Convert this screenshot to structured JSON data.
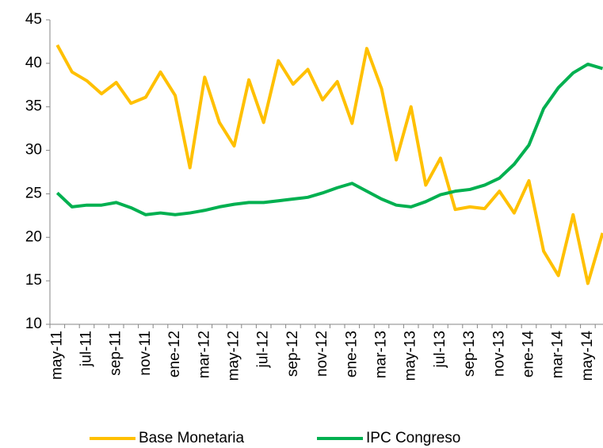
{
  "chart_data": {
    "type": "line",
    "categories": [
      "may-11",
      null,
      "jul-11",
      null,
      "sep-11",
      null,
      "nov-11",
      null,
      "ene-12",
      null,
      "mar-12",
      null,
      "may-12",
      null,
      "jul-12",
      null,
      "sep-12",
      null,
      "nov-12",
      null,
      "ene-13",
      null,
      "mar-13",
      null,
      "may-13",
      null,
      "jul-13",
      null,
      "sep-13",
      null,
      "nov-13",
      null,
      "ene-14",
      null,
      "mar-14",
      null,
      "may-14",
      null
    ],
    "series": [
      {
        "name": "Base Monetaria",
        "color": "#FFC000",
        "values": [
          42.1,
          39.0,
          38.0,
          36.5,
          37.8,
          35.4,
          36.1,
          39.0,
          36.3,
          28.0,
          38.4,
          33.2,
          30.5,
          38.1,
          33.2,
          40.3,
          37.6,
          39.3,
          35.8,
          37.9,
          33.1,
          41.7,
          37.1,
          28.9,
          35.0,
          26.0,
          29.1,
          23.2,
          23.5,
          23.3,
          25.3,
          22.8,
          26.5,
          18.4,
          15.6,
          22.6,
          14.7,
          20.5
        ]
      },
      {
        "name": "IPC Congreso",
        "color": "#00B050",
        "values": [
          25.1,
          23.5,
          23.7,
          23.7,
          24.0,
          23.4,
          22.6,
          22.8,
          22.6,
          22.8,
          23.1,
          23.5,
          23.8,
          24.0,
          24.0,
          24.2,
          24.4,
          24.6,
          25.1,
          25.7,
          26.2,
          25.3,
          24.4,
          23.7,
          23.5,
          24.1,
          24.9,
          25.3,
          25.5,
          26.0,
          26.8,
          28.4,
          30.6,
          34.8,
          37.2,
          38.9,
          39.9,
          39.4
        ]
      }
    ],
    "ylim": [
      10,
      45
    ],
    "yticks": [
      10,
      15,
      20,
      25,
      30,
      35,
      40,
      45
    ]
  }
}
